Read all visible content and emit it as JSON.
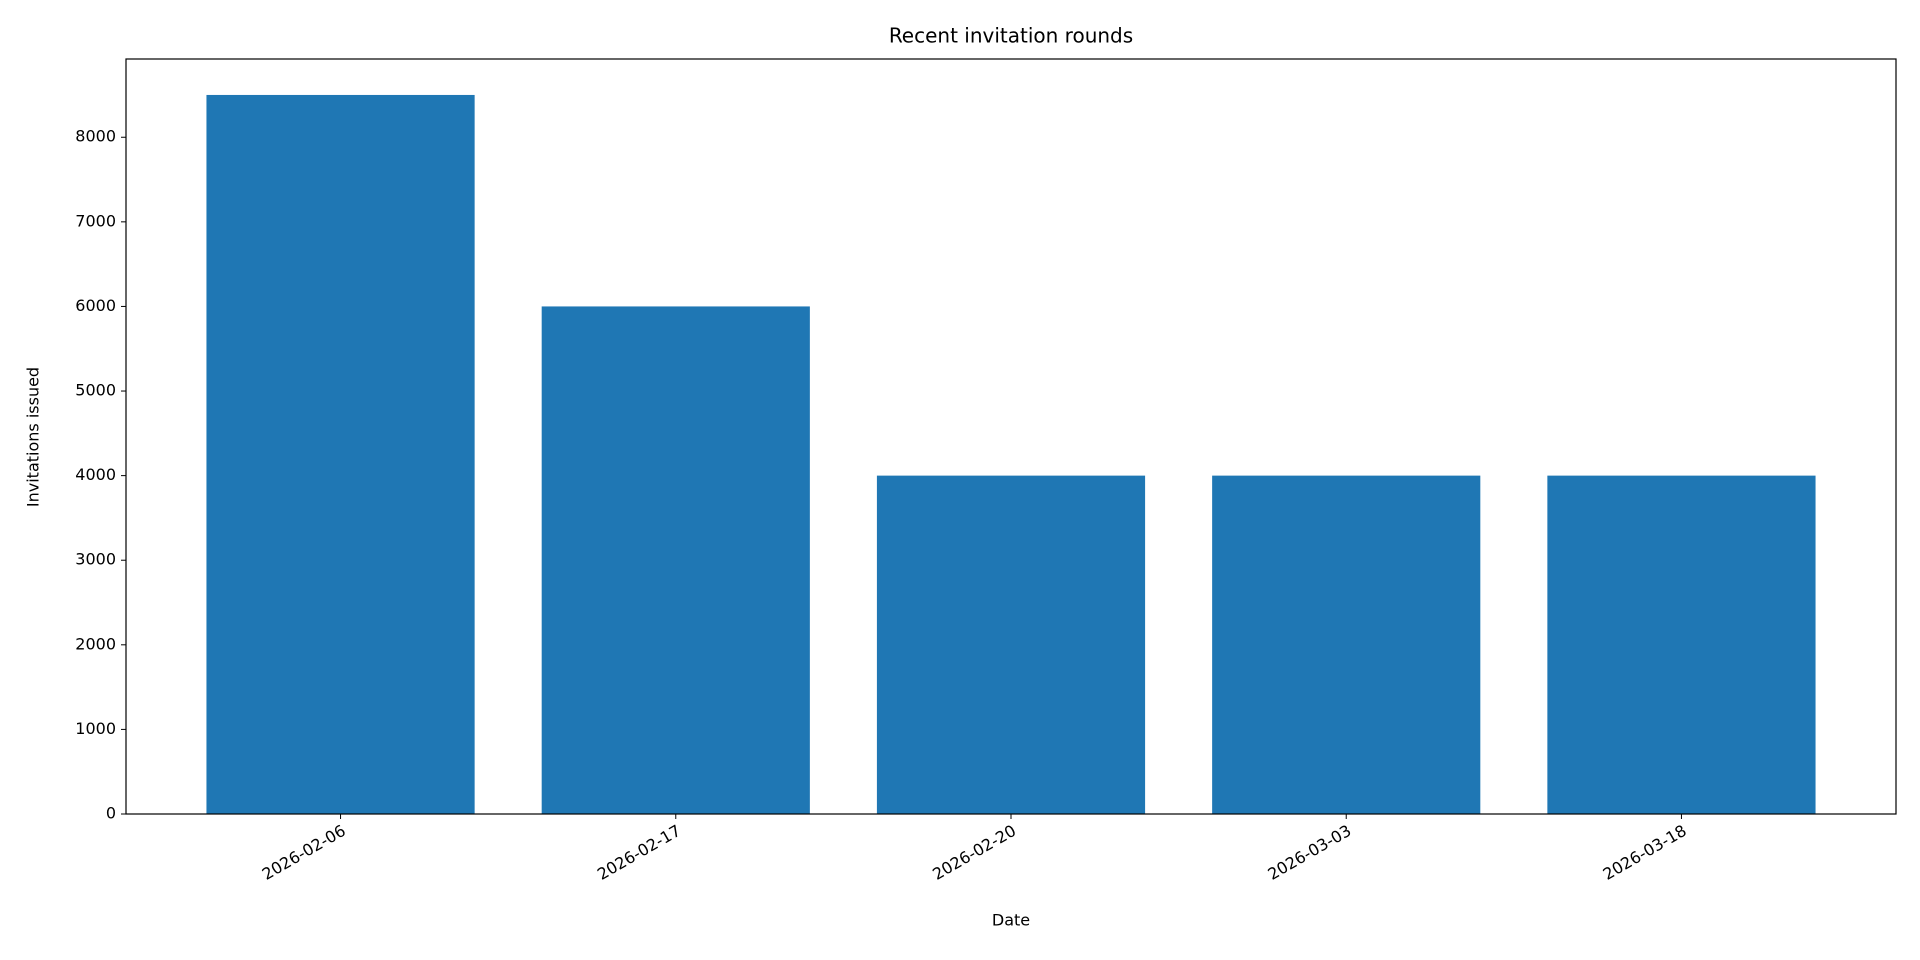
{
  "chart_data": {
    "type": "bar",
    "title": "Recent invitation rounds",
    "x_label": "Date",
    "y_label": "Invitations issued",
    "categories": [
      "2026-02-06",
      "2026-02-17",
      "2026-02-20",
      "2026-03-03",
      "2026-03-18"
    ],
    "values": [
      8500,
      6000,
      4000,
      4000,
      4000
    ],
    "color": "#1f77b4",
    "ylim": [
      0,
      8925
    ],
    "yticks": [
      0,
      1000,
      2000,
      3000,
      4000,
      5000,
      6000,
      7000,
      8000
    ],
    "grid": false
  }
}
